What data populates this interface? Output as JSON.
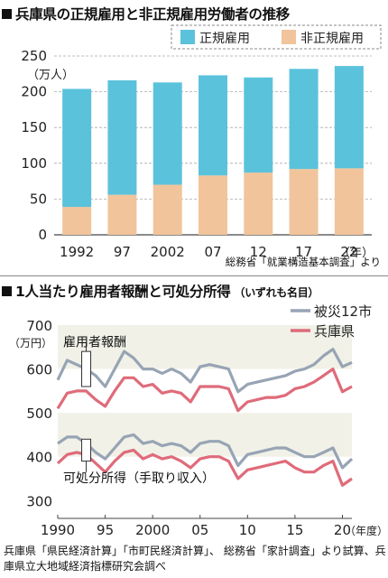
{
  "chart_data": [
    {
      "type": "bar",
      "stacked": true,
      "title": "兵庫県の正規雇用と非正規雇用労働者の推移",
      "yunit": "（万人）",
      "xunit": "（年）",
      "categories": [
        "1992",
        "97",
        "2002",
        "07",
        "12",
        "17",
        "22"
      ],
      "series": [
        {
          "name": "非正規雇用",
          "color": "#f1c49b",
          "values": [
            39,
            56,
            70,
            83,
            87,
            92,
            93
          ]
        },
        {
          "name": "正規雇用",
          "color": "#5bc2dc",
          "values": [
            165,
            160,
            143,
            140,
            133,
            140,
            143
          ]
        }
      ],
      "ylim": [
        0,
        250
      ],
      "yticks": [
        0,
        50,
        100,
        150,
        200,
        250
      ],
      "legend": "top-right",
      "source": "総務省「就業構造基本調査」より"
    },
    {
      "type": "line",
      "title": "1人当たり雇用者報酬と可処分所得",
      "subtitle": "（いずれも名目）",
      "yunit1": "700",
      "yunit2": "（万円）",
      "xunit": "（年度）",
      "xlim": [
        1990,
        2021
      ],
      "ylim": [
        280,
        700
      ],
      "yticks": [
        300,
        400,
        500,
        600
      ],
      "xticks": [
        {
          "value": 1990,
          "label": "1990"
        },
        {
          "value": 1995,
          "label": "95"
        },
        {
          "value": 2000,
          "label": "2000"
        },
        {
          "value": 2005,
          "label": "05"
        },
        {
          "value": 2010,
          "label": "10"
        },
        {
          "value": 2015,
          "label": "15"
        },
        {
          "value": 2020,
          "label": "20"
        }
      ],
      "x": [
        1990,
        1991,
        1992,
        1993,
        1994,
        1995,
        1996,
        1997,
        1998,
        1999,
        2000,
        2001,
        2002,
        2003,
        2004,
        2005,
        2006,
        2007,
        2008,
        2009,
        2010,
        2011,
        2012,
        2013,
        2014,
        2015,
        2016,
        2017,
        2018,
        2019,
        2020,
        2021
      ],
      "series": [
        {
          "name": "被災12市",
          "group": "雇用者報酬",
          "color": "#97a4b4",
          "values": [
            575,
            620,
            610,
            600,
            585,
            560,
            600,
            640,
            625,
            600,
            600,
            590,
            600,
            590,
            570,
            605,
            610,
            605,
            600,
            548,
            565,
            570,
            575,
            580,
            585,
            595,
            600,
            610,
            630,
            645,
            605,
            615
          ]
        },
        {
          "name": "兵庫県",
          "group": "雇用者報酬",
          "color": "#df6b7a",
          "values": [
            510,
            545,
            550,
            550,
            530,
            515,
            550,
            580,
            580,
            560,
            565,
            545,
            550,
            545,
            525,
            560,
            560,
            560,
            555,
            505,
            525,
            530,
            535,
            535,
            540,
            555,
            560,
            570,
            585,
            600,
            548,
            560
          ]
        },
        {
          "name": "被災12市",
          "group": "可処分所得",
          "color": "#97a4b4",
          "values": [
            430,
            445,
            445,
            430,
            410,
            395,
            420,
            445,
            450,
            430,
            435,
            425,
            430,
            425,
            410,
            430,
            435,
            435,
            425,
            380,
            405,
            410,
            415,
            420,
            420,
            410,
            400,
            400,
            410,
            420,
            375,
            395
          ]
        },
        {
          "name": "兵庫県",
          "group": "可処分所得",
          "color": "#df6b7a",
          "values": [
            385,
            405,
            410,
            405,
            385,
            365,
            390,
            410,
            415,
            395,
            405,
            395,
            400,
            390,
            375,
            395,
            400,
            400,
            390,
            350,
            370,
            375,
            380,
            385,
            390,
            375,
            365,
            365,
            380,
            390,
            335,
            350
          ]
        }
      ],
      "annotations": [
        "雇用者報酬",
        "可処分所得（手取り収入）"
      ],
      "legend": "top-right",
      "source": "兵庫県「県民経済計算」「市町民経済計算」、 総務省「家計調査」より試算、兵庫県立大地域経済指標研究会調べ"
    }
  ]
}
